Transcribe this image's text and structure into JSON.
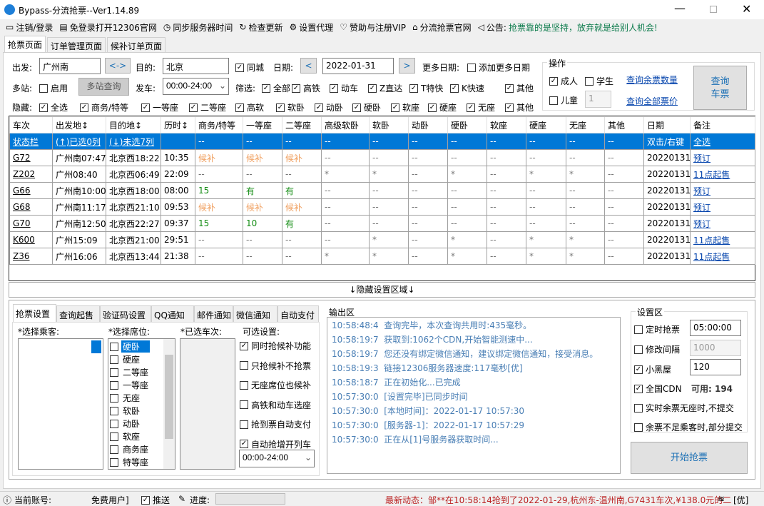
{
  "window": {
    "title": "Bypass-分流抢票--Ver1.14.89"
  },
  "toolbar": {
    "items": [
      "注销/登录",
      "免登录打开12306官网",
      "同步服务器时间",
      "检查更新",
      "设置代理",
      "赞助与注册VIP",
      "分流抢票官网"
    ],
    "notice_label": "公告:",
    "notice_text": "抢票靠的是坚持，放弃就是给别人机会!"
  },
  "tabs": [
    "抢票页面",
    "订单管理页面",
    "候补订单页面"
  ],
  "query": {
    "from_label": "出发:",
    "from": "广州南",
    "swap": "<->",
    "to_label": "目的:",
    "to": "北京",
    "same_city": "同城",
    "date_label": "日期:",
    "date": "2022-01-31",
    "prev": "<",
    "next": ">",
    "more_dates_label": "更多日期:",
    "add_more_dates": "添加更多日期",
    "multi_label": "多站:",
    "multi_enable": "启用",
    "multi_query": "多站查询",
    "depart_label": "发车:",
    "depart_time": "00:00-24:00",
    "filter_label": "筛选:",
    "filters": [
      "全部",
      "高铁",
      "动车",
      "Z直达",
      "T特快",
      "K快速",
      "其他"
    ],
    "hide_label": "隐藏:",
    "hide": [
      "全选",
      "商务/特等",
      "一等座",
      "二等座",
      "高软",
      "软卧",
      "动卧",
      "硬卧",
      "软座",
      "硬座",
      "无座",
      "其他"
    ]
  },
  "operation": {
    "title": "操作",
    "adult": "成人",
    "student": "学生",
    "child": "儿童",
    "child_count": "1",
    "query_remaining": "查询余票数量",
    "query_prices": "查询全部票价",
    "query_button_l1": "查询",
    "query_button_l2": "车票"
  },
  "table": {
    "headers": [
      "车次",
      "出发地↕",
      "目的地↕",
      "历时↕",
      "商务/特等",
      "一等座",
      "二等座",
      "高级软卧",
      "软卧",
      "动卧",
      "硬卧",
      "软座",
      "硬座",
      "无座",
      "其他",
      "日期",
      "备注"
    ],
    "status_row": [
      "状态栏",
      "(↑)已选0列",
      "(↓)未选7列",
      "",
      "--",
      "--",
      "--",
      "--",
      "--",
      "--",
      "--",
      "--",
      "--",
      "--",
      "--",
      "双击/右键",
      "全选"
    ],
    "rows": [
      [
        "G72",
        "广州南07:47",
        "北京西18:22",
        "10:35",
        "候补",
        "候补",
        "候补",
        "--",
        "--",
        "--",
        "--",
        "--",
        "--",
        "--",
        "--",
        "20220131",
        "预订"
      ],
      [
        "Z202",
        "广州08:40",
        "北京西06:49",
        "22:09",
        "--",
        "--",
        "--",
        "*",
        "*",
        "--",
        "*",
        "--",
        "*",
        "*",
        "--",
        "20220131",
        "11点起售"
      ],
      [
        "G66",
        "广州南10:00",
        "北京西18:00",
        "08:00",
        "15",
        "有",
        "有",
        "--",
        "--",
        "--",
        "--",
        "--",
        "--",
        "--",
        "--",
        "20220131",
        "预订"
      ],
      [
        "G68",
        "广州南11:17",
        "北京西21:10",
        "09:53",
        "候补",
        "候补",
        "候补",
        "--",
        "--",
        "--",
        "--",
        "--",
        "--",
        "--",
        "--",
        "20220131",
        "预订"
      ],
      [
        "G70",
        "广州南12:50",
        "北京西22:27",
        "09:37",
        "15",
        "10",
        "有",
        "--",
        "--",
        "--",
        "--",
        "--",
        "--",
        "--",
        "--",
        "20220131",
        "预订"
      ],
      [
        "K600",
        "广州15:09",
        "北京西21:00",
        "29:51",
        "--",
        "--",
        "--",
        "--",
        "*",
        "--",
        "*",
        "--",
        "*",
        "*",
        "--",
        "20220131",
        "11点起售"
      ],
      [
        "Z36",
        "广州16:06",
        "北京西13:44",
        "21:38",
        "--",
        "--",
        "--",
        "*",
        "*",
        "--",
        "*",
        "--",
        "*",
        "*",
        "--",
        "20220131",
        "11点起售"
      ]
    ]
  },
  "hidden_area": "↓隐藏设置区域↓",
  "bottom_tabs": [
    "抢票设置",
    "查询起售",
    "验证码设置",
    "QQ通知",
    "邮件通知",
    "微信通知",
    "自动支付"
  ],
  "settings": {
    "passenger_label": "*选择乘客:",
    "seat_label": "*选择席位:",
    "trains_label": "*已选车次:",
    "options_label": "可选设置:",
    "seats": [
      "硬卧",
      "硬座",
      "二等座",
      "一等座",
      "无座",
      "软卧",
      "动卧",
      "软座",
      "商务座",
      "特等座"
    ],
    "options": [
      {
        "label": "同时抢候补功能",
        "checked": true
      },
      {
        "label": "只抢候补不抢票",
        "checked": false
      },
      {
        "label": "无座席位也候补",
        "checked": false
      },
      {
        "label": "高铁和动车选座",
        "checked": false
      },
      {
        "label": "抢到票自动支付",
        "checked": false
      },
      {
        "label": "自动抢增开列车",
        "checked": true
      }
    ],
    "time_range": "00:00-24:00"
  },
  "output": {
    "title": "输出区",
    "logs": [
      [
        "10:58:48:4",
        "查询完毕，本次查询共用时:435毫秒。"
      ],
      [
        "10:58:19:7",
        "获取到:1062个CDN,开始智能测速中..."
      ],
      [
        "10:58:19:7",
        "您还没有绑定微信通知，建议绑定微信通知，接受消息。"
      ],
      [
        "10:58:19:3",
        "链接12306服务器速度:117毫秒[优]"
      ],
      [
        "10:58:18:7",
        "正在初始化...已完成"
      ],
      [
        "10:57:30:0",
        "[设置完毕]已同步时间"
      ],
      [
        "10:57:30:0",
        "[本地时间]：2022-01-17 10:57:30"
      ],
      [
        "10:57:30:0",
        "[服务器-1]：2022-01-17 10:57:29"
      ],
      [
        "10:57:30:0",
        "正在从[1]号服务器获取时间..."
      ]
    ]
  },
  "config": {
    "title": "设置区",
    "timed": "定时抢票",
    "timed_value": "05:00:00",
    "interval": "修改间隔",
    "interval_value": "1000",
    "blackroom": "小黑屋",
    "blackroom_value": "120",
    "cdn": "全国CDN",
    "cdn_available": "可用: 194",
    "no_seat": "实时余票无座时,不提交",
    "partial": "余票不足乘客时,部分提交",
    "start": "开始抢票"
  },
  "statusbar": {
    "account_label": "当前账号:",
    "account_value": "免费用户]",
    "push": "推送",
    "progress_label": "进度:",
    "news": "最新动态：邹**在10:58:14抢到了2022-01-29,杭州东-温州南,G7431车次,¥138.0元的二",
    "quality": "[优]"
  }
}
